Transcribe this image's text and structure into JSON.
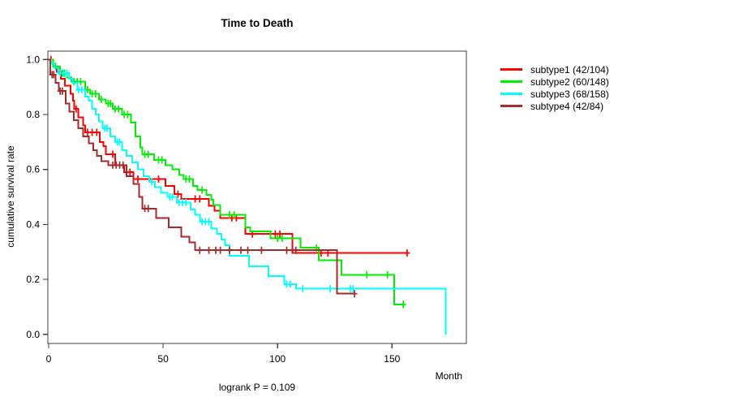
{
  "chart_data": {
    "type": "line",
    "chart_kind": "kaplan-meier-step-curves",
    "title": "Time to Death",
    "xlabel": "Month",
    "ylabel": "cumulative survival rate",
    "annotation": "logrank P = 0.109",
    "logrank_p": 0.109,
    "xlim": [
      0,
      183
    ],
    "ylim": [
      0.0,
      1.0
    ],
    "x_ticks": [
      0,
      50,
      100,
      150
    ],
    "y_ticks": [
      0.0,
      0.2,
      0.4,
      0.6,
      0.8,
      1.0
    ],
    "grid": false,
    "legend_position": "right-outside",
    "axis_color": "#404040",
    "series": [
      {
        "name": "subtype1",
        "label": "subtype1 (42/104)",
        "events": 42,
        "total": 104,
        "color": "#ff0000",
        "end_month": 156.6,
        "points": [
          [
            0,
            1.0
          ],
          [
            2,
            0.975
          ],
          [
            3.5,
            0.955
          ],
          [
            5.3,
            0.93
          ],
          [
            7,
            0.905
          ],
          [
            9.5,
            0.875
          ],
          [
            10.6,
            0.85
          ],
          [
            11.2,
            0.82
          ],
          [
            13,
            0.79
          ],
          [
            15,
            0.76
          ],
          [
            16,
            0.735
          ],
          [
            22.3,
            0.7
          ],
          [
            24,
            0.685
          ],
          [
            25,
            0.655
          ],
          [
            29,
            0.616
          ],
          [
            33,
            0.59
          ],
          [
            37,
            0.565
          ],
          [
            51,
            0.54
          ],
          [
            55,
            0.51
          ],
          [
            58,
            0.493
          ],
          [
            70,
            0.468
          ],
          [
            72.5,
            0.45
          ],
          [
            75,
            0.424
          ],
          [
            86,
            0.365
          ],
          [
            106.5,
            0.296
          ]
        ],
        "censors": [
          [
            1,
            1.0
          ],
          [
            12,
            0.82
          ],
          [
            17,
            0.735
          ],
          [
            19,
            0.735
          ],
          [
            21,
            0.735
          ],
          [
            28,
            0.655
          ],
          [
            35.5,
            0.59
          ],
          [
            39,
            0.565
          ],
          [
            48,
            0.565
          ],
          [
            56.5,
            0.51
          ],
          [
            64,
            0.493
          ],
          [
            66,
            0.493
          ],
          [
            80,
            0.424
          ],
          [
            82,
            0.424
          ],
          [
            89,
            0.365
          ],
          [
            99,
            0.365
          ],
          [
            101,
            0.365
          ],
          [
            119,
            0.296
          ],
          [
            122,
            0.296
          ],
          [
            156.6,
            0.296
          ]
        ]
      },
      {
        "name": "subtype2",
        "label": "subtype2 (60/148)",
        "events": 60,
        "total": 148,
        "color": "#00ee00",
        "end_month": 154.9,
        "points": [
          [
            0,
            1.0
          ],
          [
            2,
            0.975
          ],
          [
            5,
            0.95
          ],
          [
            8,
            0.935
          ],
          [
            10,
            0.92
          ],
          [
            16,
            0.89
          ],
          [
            18,
            0.875
          ],
          [
            22,
            0.855
          ],
          [
            25,
            0.84
          ],
          [
            28,
            0.82
          ],
          [
            32,
            0.8
          ],
          [
            36,
            0.77
          ],
          [
            38,
            0.72
          ],
          [
            40,
            0.68
          ],
          [
            41,
            0.655
          ],
          [
            46,
            0.635
          ],
          [
            51,
            0.616
          ],
          [
            54,
            0.6
          ],
          [
            57,
            0.58
          ],
          [
            59,
            0.565
          ],
          [
            63,
            0.54
          ],
          [
            65,
            0.525
          ],
          [
            69,
            0.508
          ],
          [
            71,
            0.49
          ],
          [
            72,
            0.47
          ],
          [
            75,
            0.435
          ],
          [
            86,
            0.39
          ],
          [
            88,
            0.375
          ],
          [
            97,
            0.35
          ],
          [
            110,
            0.315
          ],
          [
            118,
            0.27
          ],
          [
            128,
            0.217
          ],
          [
            151,
            0.109
          ]
        ],
        "censors": [
          [
            3,
            0.975
          ],
          [
            6,
            0.95
          ],
          [
            7,
            0.95
          ],
          [
            11,
            0.92
          ],
          [
            12.5,
            0.92
          ],
          [
            14,
            0.92
          ],
          [
            17,
            0.89
          ],
          [
            19,
            0.875
          ],
          [
            20.5,
            0.875
          ],
          [
            23,
            0.855
          ],
          [
            26,
            0.84
          ],
          [
            27,
            0.84
          ],
          [
            29,
            0.82
          ],
          [
            30.5,
            0.82
          ],
          [
            33,
            0.8
          ],
          [
            34.5,
            0.8
          ],
          [
            42,
            0.655
          ],
          [
            43.5,
            0.655
          ],
          [
            48,
            0.635
          ],
          [
            49.5,
            0.635
          ],
          [
            60,
            0.565
          ],
          [
            61.5,
            0.565
          ],
          [
            67,
            0.525
          ],
          [
            79,
            0.435
          ],
          [
            81,
            0.435
          ],
          [
            100,
            0.35
          ],
          [
            102,
            0.35
          ],
          [
            117,
            0.315
          ],
          [
            139,
            0.217
          ],
          [
            148,
            0.217
          ],
          [
            154.9,
            0.109
          ]
        ]
      },
      {
        "name": "subtype3",
        "label": "subtype3 (68/158)",
        "events": 68,
        "total": 158,
        "color": "#00ffff",
        "end_month": 173.4,
        "points": [
          [
            0,
            1.0
          ],
          [
            1,
            0.985
          ],
          [
            2.5,
            0.97
          ],
          [
            4,
            0.95
          ],
          [
            9,
            0.93
          ],
          [
            10.5,
            0.915
          ],
          [
            12.5,
            0.89
          ],
          [
            16,
            0.865
          ],
          [
            17.5,
            0.85
          ],
          [
            19,
            0.82
          ],
          [
            20.5,
            0.8
          ],
          [
            22,
            0.775
          ],
          [
            23.5,
            0.75
          ],
          [
            27,
            0.72
          ],
          [
            29,
            0.7
          ],
          [
            32,
            0.67
          ],
          [
            34,
            0.65
          ],
          [
            36.5,
            0.625
          ],
          [
            39,
            0.6
          ],
          [
            41.5,
            0.575
          ],
          [
            44,
            0.555
          ],
          [
            46.5,
            0.535
          ],
          [
            49,
            0.515
          ],
          [
            52,
            0.5
          ],
          [
            56,
            0.48
          ],
          [
            62,
            0.455
          ],
          [
            64,
            0.435
          ],
          [
            66,
            0.41
          ],
          [
            71,
            0.385
          ],
          [
            73.5,
            0.365
          ],
          [
            75.5,
            0.345
          ],
          [
            77,
            0.325
          ],
          [
            79,
            0.286
          ],
          [
            87.5,
            0.247
          ],
          [
            96,
            0.212
          ],
          [
            103,
            0.183
          ],
          [
            108,
            0.166
          ],
          [
            173.4,
            0.0
          ]
        ],
        "censors": [
          [
            5,
            0.95
          ],
          [
            6.5,
            0.95
          ],
          [
            8,
            0.95
          ],
          [
            13,
            0.89
          ],
          [
            14.5,
            0.89
          ],
          [
            24.5,
            0.75
          ],
          [
            25.5,
            0.75
          ],
          [
            30,
            0.7
          ],
          [
            31,
            0.7
          ],
          [
            45,
            0.555
          ],
          [
            53,
            0.5
          ],
          [
            54,
            0.5
          ],
          [
            57,
            0.48
          ],
          [
            58.5,
            0.48
          ],
          [
            60,
            0.48
          ],
          [
            67,
            0.41
          ],
          [
            68.5,
            0.41
          ],
          [
            70,
            0.41
          ],
          [
            104,
            0.183
          ],
          [
            105.5,
            0.183
          ],
          [
            111,
            0.166
          ],
          [
            123,
            0.166
          ],
          [
            131.8,
            0.166
          ],
          [
            133,
            0.166
          ]
        ]
      },
      {
        "name": "subtype4",
        "label": "subtype4 (42/84)",
        "events": 42,
        "total": 84,
        "color": "#a52a2a",
        "end_month": 133.6,
        "points": [
          [
            0,
            1.0
          ],
          [
            0.7,
            0.945
          ],
          [
            3,
            0.915
          ],
          [
            4.5,
            0.885
          ],
          [
            7.5,
            0.84
          ],
          [
            9,
            0.81
          ],
          [
            11,
            0.78
          ],
          [
            13,
            0.75
          ],
          [
            15,
            0.72
          ],
          [
            17.5,
            0.695
          ],
          [
            19.5,
            0.67
          ],
          [
            21,
            0.65
          ],
          [
            23,
            0.63
          ],
          [
            26,
            0.616
          ],
          [
            34,
            0.576
          ],
          [
            37,
            0.547
          ],
          [
            39.5,
            0.5
          ],
          [
            41,
            0.458
          ],
          [
            47,
            0.424
          ],
          [
            52.5,
            0.389
          ],
          [
            58,
            0.355
          ],
          [
            61.5,
            0.335
          ],
          [
            64,
            0.306
          ],
          [
            126,
            0.148
          ]
        ],
        "censors": [
          [
            1.5,
            0.945
          ],
          [
            2.2,
            0.945
          ],
          [
            5,
            0.885
          ],
          [
            6,
            0.885
          ],
          [
            28,
            0.616
          ],
          [
            29.5,
            0.616
          ],
          [
            31,
            0.616
          ],
          [
            32.5,
            0.616
          ],
          [
            42,
            0.458
          ],
          [
            43.5,
            0.458
          ],
          [
            66,
            0.306
          ],
          [
            70,
            0.306
          ],
          [
            73,
            0.306
          ],
          [
            75,
            0.306
          ],
          [
            79,
            0.306
          ],
          [
            84,
            0.306
          ],
          [
            87,
            0.306
          ],
          [
            93,
            0.306
          ],
          [
            104,
            0.306
          ],
          [
            108,
            0.306
          ],
          [
            133.6,
            0.148
          ]
        ]
      }
    ]
  }
}
